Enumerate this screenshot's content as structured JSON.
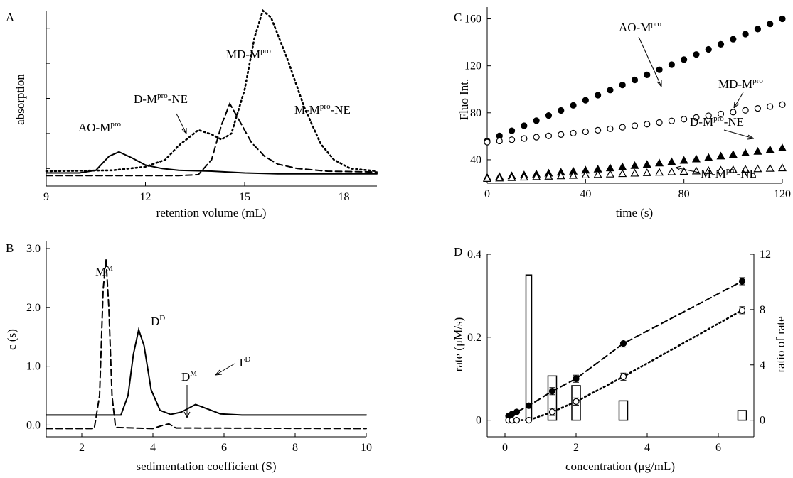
{
  "chart_data": [
    {
      "panel": "A",
      "type": "line",
      "xlabel": "retention volume (mL)",
      "ylabel": "absorption",
      "xlim": [
        9,
        19
      ],
      "xticks": [
        9,
        12,
        15,
        18
      ],
      "ylim": [
        0,
        1
      ],
      "y_tick_labels_shown": false,
      "series": [
        {
          "name": "AO-M",
          "name_sup": "pro",
          "style": "solid",
          "points": [
            [
              9,
              0.075
            ],
            [
              10,
              0.075
            ],
            [
              10.5,
              0.09
            ],
            [
              10.9,
              0.17
            ],
            [
              11.2,
              0.195
            ],
            [
              11.6,
              0.16
            ],
            [
              12,
              0.12
            ],
            [
              12.5,
              0.1
            ],
            [
              13,
              0.09
            ],
            [
              14,
              0.085
            ],
            [
              15,
              0.075
            ],
            [
              16,
              0.07
            ],
            [
              19,
              0.07
            ]
          ]
        },
        {
          "name": "D-M",
          "name_sup": "pro",
          "name_suffix": "-NE",
          "style": "dashed",
          "points": [
            [
              9,
              0.06
            ],
            [
              13,
              0.06
            ],
            [
              13.6,
              0.065
            ],
            [
              14,
              0.15
            ],
            [
              14.3,
              0.35
            ],
            [
              14.55,
              0.47
            ],
            [
              14.85,
              0.37
            ],
            [
              15.2,
              0.25
            ],
            [
              15.6,
              0.17
            ],
            [
              16,
              0.125
            ],
            [
              16.6,
              0.1
            ],
            [
              17.5,
              0.085
            ],
            [
              19,
              0.08
            ]
          ]
        },
        {
          "name": "M-M",
          "name_sup": "pro",
          "name_suffix": "-NE",
          "style": "dotted",
          "points": [
            [
              9,
              0.085
            ],
            [
              11,
              0.09
            ],
            [
              12,
              0.11
            ],
            [
              12.6,
              0.15
            ],
            [
              13,
              0.23
            ],
            [
              13.6,
              0.32
            ],
            [
              14,
              0.295
            ],
            [
              14.3,
              0.265
            ],
            [
              14.6,
              0.3
            ],
            [
              15,
              0.55
            ],
            [
              15.3,
              0.85
            ],
            [
              15.55,
              1.0
            ],
            [
              15.8,
              0.96
            ],
            [
              16.3,
              0.72
            ],
            [
              16.8,
              0.45
            ],
            [
              17.3,
              0.24
            ],
            [
              17.7,
              0.15
            ],
            [
              18.2,
              0.1
            ],
            [
              19,
              0.085
            ]
          ]
        }
      ],
      "annotations": [
        {
          "text": "AO-M",
          "sup": "pro"
        },
        {
          "text": "D-M",
          "sup": "pro",
          "suffix": "-NE"
        },
        {
          "text": "MD-M",
          "sup": "pro"
        },
        {
          "text": "M-M",
          "sup": "pro",
          "suffix": "-NE"
        }
      ]
    },
    {
      "panel": "B",
      "type": "line",
      "xlabel": "sedimentation coefficient (S)",
      "ylabel": "c (s)",
      "xlim": [
        1,
        10
      ],
      "xticks": [
        2,
        4,
        6,
        8,
        10
      ],
      "ylim": [
        -0.2,
        3.0
      ],
      "yticks": [
        0,
        1.0,
        2.0,
        3.0
      ],
      "ytick_labels": [
        "0.0",
        "1.0",
        "2.0",
        "3.0"
      ],
      "series": [
        {
          "style": "solid",
          "points": [
            [
              1,
              0.17
            ],
            [
              3.1,
              0.17
            ],
            [
              3.3,
              0.5
            ],
            [
              3.45,
              1.2
            ],
            [
              3.6,
              1.62
            ],
            [
              3.75,
              1.35
            ],
            [
              3.95,
              0.6
            ],
            [
              4.2,
              0.25
            ],
            [
              4.5,
              0.18
            ],
            [
              4.8,
              0.22
            ],
            [
              5.2,
              0.35
            ],
            [
              5.55,
              0.27
            ],
            [
              5.9,
              0.19
            ],
            [
              6.5,
              0.17
            ],
            [
              10,
              0.17
            ]
          ]
        },
        {
          "style": "dashed",
          "points": [
            [
              1,
              -0.06
            ],
            [
              2.35,
              -0.06
            ],
            [
              2.5,
              0.5
            ],
            [
              2.6,
              2.3
            ],
            [
              2.68,
              2.82
            ],
            [
              2.76,
              2.0
            ],
            [
              2.85,
              0.5
            ],
            [
              2.95,
              -0.04
            ],
            [
              4.0,
              -0.06
            ],
            [
              4.3,
              0.0
            ],
            [
              4.45,
              0.02
            ],
            [
              4.65,
              -0.05
            ],
            [
              10,
              -0.06
            ]
          ]
        }
      ],
      "annotations": [
        {
          "text": "M",
          "sup": "M"
        },
        {
          "text": "D",
          "sup": "D"
        },
        {
          "text": "D",
          "sup": "M"
        },
        {
          "text": "T",
          "sup": "D"
        }
      ]
    },
    {
      "panel": "C",
      "type": "scatter",
      "xlabel": "time (s)",
      "ylabel": "Fluo Int.",
      "xlim": [
        0,
        120
      ],
      "xticks": [
        0,
        40,
        80,
        120
      ],
      "ylim": [
        20,
        170
      ],
      "yticks": [
        40,
        80,
        120,
        160
      ],
      "series": [
        {
          "name": "AO-M",
          "name_sup": "pro",
          "marker": "filled-circle",
          "start": 56,
          "end": 160
        },
        {
          "name": "MD-M",
          "name_sup": "pro",
          "marker": "open-circle",
          "start": 55,
          "end": 87
        },
        {
          "name": "D-M",
          "name_sup": "pro",
          "name_suffix": "-NE",
          "marker": "filled-triangle",
          "start": 25,
          "end": 50
        },
        {
          "name": "M-M",
          "name_sup": "pro",
          "name_suffix": "-NE",
          "marker": "open-triangle",
          "start": 24,
          "end": 33
        }
      ],
      "x_step": 5
    },
    {
      "panel": "D",
      "type": "scatter",
      "xlabel": "concentration (μg/mL)",
      "ylabel": "rate (μM/s)",
      "ylabel_right": "ratio of rate",
      "xlim": [
        -0.5,
        7
      ],
      "xticks": [
        0,
        2,
        4,
        6
      ],
      "ylim": [
        -0.04,
        0.4
      ],
      "yticks": [
        0,
        0.2,
        0.4
      ],
      "ytick_labels": [
        "0",
        "0.2",
        "0.4"
      ],
      "ylim_right": [
        -1.2,
        12
      ],
      "yticks_right": [
        0,
        4,
        8,
        12
      ],
      "series": [
        {
          "marker": "filled-circle",
          "fit": "dashed",
          "x": [
            0.1,
            0.2,
            0.33,
            0.67,
            1.33,
            2.0,
            3.33,
            6.67
          ],
          "y": [
            0.01,
            0.015,
            0.02,
            0.035,
            0.07,
            0.1,
            0.185,
            0.335
          ]
        },
        {
          "marker": "open-circle",
          "fit": "dotted",
          "x": [
            0.1,
            0.2,
            0.33,
            0.67,
            1.33,
            2.0,
            3.33,
            6.67
          ],
          "y": [
            0.0,
            0.0,
            0.0,
            0.0,
            0.02,
            0.045,
            0.105,
            0.265
          ]
        }
      ],
      "bars_right_axis": {
        "x": [
          0.67,
          1.33,
          2.0,
          3.33,
          6.67
        ],
        "values": [
          10.5,
          3.2,
          2.5,
          1.4,
          0.7
        ]
      }
    }
  ]
}
